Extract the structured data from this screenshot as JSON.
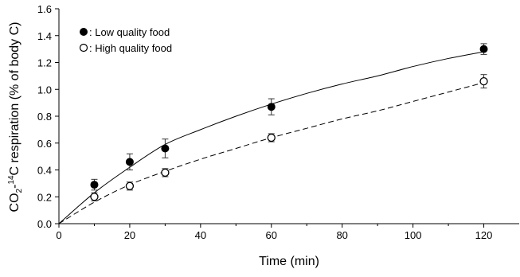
{
  "chart_data": {
    "type": "scatter",
    "xlabel": "Time (min)",
    "ylabel": {
      "prefix": "CO",
      "sub": "2",
      "dash": "-",
      "sup": "14",
      "rest": "C respiration (% of body C)"
    },
    "xlim": [
      0,
      130
    ],
    "ylim": [
      0,
      1.6
    ],
    "x_ticks": [
      0,
      20,
      40,
      60,
      80,
      100,
      120
    ],
    "y_ticks": [
      0.0,
      0.2,
      0.4,
      0.6,
      0.8,
      1.0,
      1.2,
      1.4,
      1.6
    ],
    "x_tick_labels": [
      "0",
      "20",
      "40",
      "60",
      "80",
      "100",
      "120"
    ],
    "y_tick_labels": [
      "0.0",
      "0.2",
      "0.4",
      "0.6",
      "0.8",
      "1.0",
      "1.2",
      "1.4",
      "1.6"
    ],
    "grid": false,
    "legend_position": "top-left",
    "series": [
      {
        "name": ": Low quality food",
        "marker": "filled-circle",
        "line_style": "solid",
        "x": [
          10,
          20,
          30,
          60,
          120
        ],
        "y": [
          0.29,
          0.46,
          0.56,
          0.87,
          1.3
        ],
        "error": [
          0.04,
          0.06,
          0.07,
          0.06,
          0.04
        ],
        "fit_x": [
          0,
          10,
          20,
          30,
          40,
          50,
          60,
          70,
          80,
          90,
          100,
          110,
          120
        ],
        "fit_y": [
          0,
          0.23,
          0.42,
          0.59,
          0.7,
          0.8,
          0.89,
          0.97,
          1.04,
          1.1,
          1.17,
          1.23,
          1.28
        ]
      },
      {
        "name": ": High quality food",
        "marker": "open-circle",
        "line_style": "dashed",
        "x": [
          10,
          20,
          30,
          60,
          120
        ],
        "y": [
          0.2,
          0.28,
          0.38,
          0.64,
          1.06
        ],
        "error": [
          0.03,
          0.03,
          0.03,
          0.03,
          0.05
        ],
        "fit_x": [
          0,
          10,
          20,
          30,
          40,
          50,
          60,
          70,
          80,
          90,
          100,
          110,
          120
        ],
        "fit_y": [
          0,
          0.16,
          0.29,
          0.39,
          0.48,
          0.56,
          0.64,
          0.71,
          0.78,
          0.84,
          0.91,
          0.98,
          1.05
        ]
      }
    ]
  }
}
